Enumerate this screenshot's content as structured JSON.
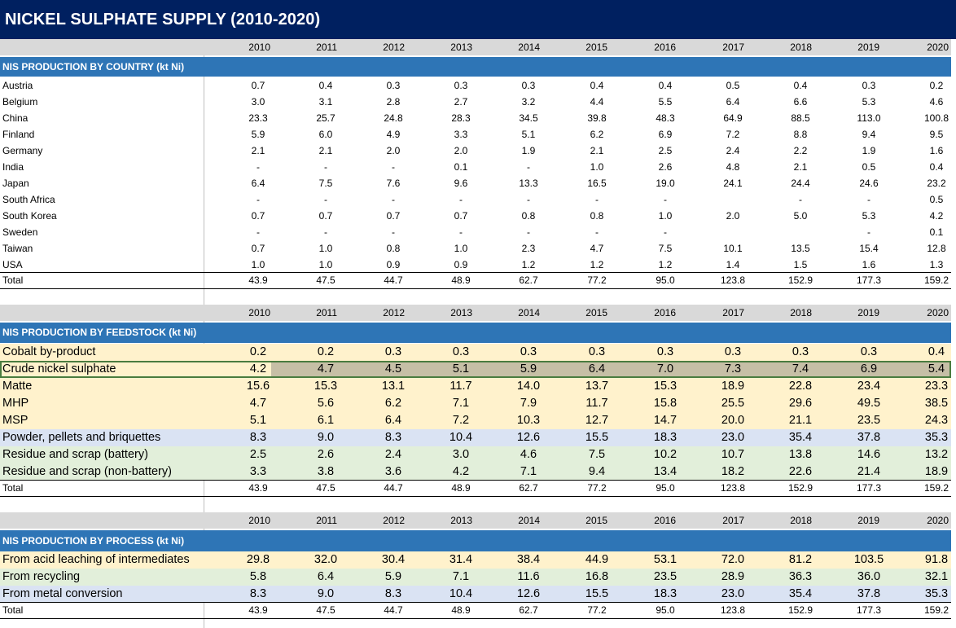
{
  "title": "NICKEL SULPHATE SUPPLY (2010-2020)",
  "years": [
    "2010",
    "2011",
    "2012",
    "2013",
    "2014",
    "2015",
    "2016",
    "2017",
    "2018",
    "2019",
    "2020"
  ],
  "colors": {
    "title_bar": "#002060",
    "section_header": "#2e75b6",
    "year_row": "#d9d9d9",
    "tint_yellow": "#fff2cc",
    "tint_blue": "#dae3f3",
    "tint_green": "#e2efda",
    "selection_border": "#4a7c3f"
  },
  "country": {
    "header": "NIS PRODUCTION BY COUNTRY (kt Ni)",
    "rows": [
      {
        "label": "Austria",
        "values": [
          "0.7",
          "0.4",
          "0.3",
          "0.3",
          "0.3",
          "0.4",
          "0.4",
          "0.5",
          "0.4",
          "0.3",
          "0.2"
        ]
      },
      {
        "label": "Belgium",
        "values": [
          "3.0",
          "3.1",
          "2.8",
          "2.7",
          "3.2",
          "4.4",
          "5.5",
          "6.4",
          "6.6",
          "5.3",
          "4.6"
        ]
      },
      {
        "label": "China",
        "values": [
          "23.3",
          "25.7",
          "24.8",
          "28.3",
          "34.5",
          "39.8",
          "48.3",
          "64.9",
          "88.5",
          "113.0",
          "100.8"
        ]
      },
      {
        "label": "Finland",
        "values": [
          "5.9",
          "6.0",
          "4.9",
          "3.3",
          "5.1",
          "6.2",
          "6.9",
          "7.2",
          "8.8",
          "9.4",
          "9.5"
        ]
      },
      {
        "label": "Germany",
        "values": [
          "2.1",
          "2.1",
          "2.0",
          "2.0",
          "1.9",
          "2.1",
          "2.5",
          "2.4",
          "2.2",
          "1.9",
          "1.6"
        ]
      },
      {
        "label": "India",
        "values": [
          "-",
          "-",
          "-",
          "0.1",
          "-",
          "1.0",
          "2.6",
          "4.8",
          "2.1",
          "0.5",
          "0.4"
        ]
      },
      {
        "label": "Japan",
        "values": [
          "6.4",
          "7.5",
          "7.6",
          "9.6",
          "13.3",
          "16.5",
          "19.0",
          "24.1",
          "24.4",
          "24.6",
          "23.2"
        ]
      },
      {
        "label": "South Africa",
        "values": [
          "-",
          "-",
          "-",
          "-",
          "-",
          "-",
          "-",
          "",
          "-",
          "-",
          "0.5"
        ]
      },
      {
        "label": "South Korea",
        "values": [
          "0.7",
          "0.7",
          "0.7",
          "0.7",
          "0.8",
          "0.8",
          "1.0",
          "2.0",
          "5.0",
          "5.3",
          "4.2"
        ]
      },
      {
        "label": "Sweden",
        "values": [
          "-",
          "-",
          "-",
          "-",
          "-",
          "-",
          "-",
          "",
          "",
          "-",
          "0.1"
        ]
      },
      {
        "label": "Taiwan",
        "values": [
          "0.7",
          "1.0",
          "0.8",
          "1.0",
          "2.3",
          "4.7",
          "7.5",
          "10.1",
          "13.5",
          "15.4",
          "12.8"
        ]
      },
      {
        "label": "USA",
        "values": [
          "1.0",
          "1.0",
          "0.9",
          "0.9",
          "1.2",
          "1.2",
          "1.2",
          "1.4",
          "1.5",
          "1.6",
          "1.3"
        ]
      }
    ],
    "total": {
      "label": "Total",
      "values": [
        "43.9",
        "47.5",
        "44.7",
        "48.9",
        "62.7",
        "77.2",
        "95.0",
        "123.8",
        "152.9",
        "177.3",
        "159.2"
      ]
    }
  },
  "feedstock": {
    "header": "NIS PRODUCTION BY FEEDSTOCK (kt Ni)",
    "rows": [
      {
        "label": "Cobalt by-product",
        "values": [
          "0.2",
          "0.2",
          "0.3",
          "0.3",
          "0.3",
          "0.3",
          "0.3",
          "0.3",
          "0.3",
          "0.3",
          "0.4"
        ],
        "tint": "#fff2cc"
      },
      {
        "label": "Crude nickel sulphate",
        "values": [
          "4.2",
          "4.7",
          "4.5",
          "5.1",
          "5.9",
          "6.4",
          "7.0",
          "7.3",
          "7.4",
          "6.9",
          "5.4"
        ],
        "tint": "#fff2cc"
      },
      {
        "label": "Matte",
        "values": [
          "15.6",
          "15.3",
          "13.1",
          "11.7",
          "14.0",
          "13.7",
          "15.3",
          "18.9",
          "22.8",
          "23.4",
          "23.3"
        ],
        "tint": "#fff2cc"
      },
      {
        "label": "MHP",
        "values": [
          "4.7",
          "5.6",
          "6.2",
          "7.1",
          "7.9",
          "11.7",
          "15.8",
          "25.5",
          "29.6",
          "49.5",
          "38.5"
        ],
        "tint": "#fff2cc"
      },
      {
        "label": "MSP",
        "values": [
          "5.1",
          "6.1",
          "6.4",
          "7.2",
          "10.3",
          "12.7",
          "14.7",
          "20.0",
          "21.1",
          "23.5",
          "24.3"
        ],
        "tint": "#fff2cc"
      },
      {
        "label": "Powder, pellets and briquettes",
        "values": [
          "8.3",
          "9.0",
          "8.3",
          "10.4",
          "12.6",
          "15.5",
          "18.3",
          "23.0",
          "35.4",
          "37.8",
          "35.3"
        ],
        "tint": "#dae3f3"
      },
      {
        "label": "Residue and scrap (battery)",
        "values": [
          "2.5",
          "2.6",
          "2.4",
          "3.0",
          "4.6",
          "7.5",
          "10.2",
          "10.7",
          "13.8",
          "14.6",
          "13.2"
        ],
        "tint": "#e2efda"
      },
      {
        "label": "Residue and scrap (non-battery)",
        "values": [
          "3.3",
          "3.8",
          "3.6",
          "4.2",
          "7.1",
          "9.4",
          "13.4",
          "18.2",
          "22.6",
          "21.4",
          "18.9"
        ],
        "tint": "#e2efda"
      }
    ],
    "total": {
      "label": "Total",
      "values": [
        "43.9",
        "47.5",
        "44.7",
        "48.9",
        "62.7",
        "77.2",
        "95.0",
        "123.8",
        "152.9",
        "177.3",
        "159.2"
      ]
    }
  },
  "process": {
    "header": "NIS PRODUCTION BY PROCESS (kt Ni)",
    "rows": [
      {
        "label": "From acid leaching of intermediates",
        "values": [
          "29.8",
          "32.0",
          "30.4",
          "31.4",
          "38.4",
          "44.9",
          "53.1",
          "72.0",
          "81.2",
          "103.5",
          "91.8"
        ],
        "tint": "#fff2cc"
      },
      {
        "label": "From recycling",
        "values": [
          "5.8",
          "6.4",
          "5.9",
          "7.1",
          "11.6",
          "16.8",
          "23.5",
          "28.9",
          "36.3",
          "36.0",
          "32.1"
        ],
        "tint": "#e2efda"
      },
      {
        "label": "From metal conversion",
        "values": [
          "8.3",
          "9.0",
          "8.3",
          "10.4",
          "12.6",
          "15.5",
          "18.3",
          "23.0",
          "35.4",
          "37.8",
          "35.3"
        ],
        "tint": "#dae3f3"
      }
    ],
    "total": {
      "label": "Total",
      "values": [
        "43.9",
        "47.5",
        "44.7",
        "48.9",
        "62.7",
        "77.2",
        "95.0",
        "123.8",
        "152.9",
        "177.3",
        "159.2"
      ]
    }
  }
}
